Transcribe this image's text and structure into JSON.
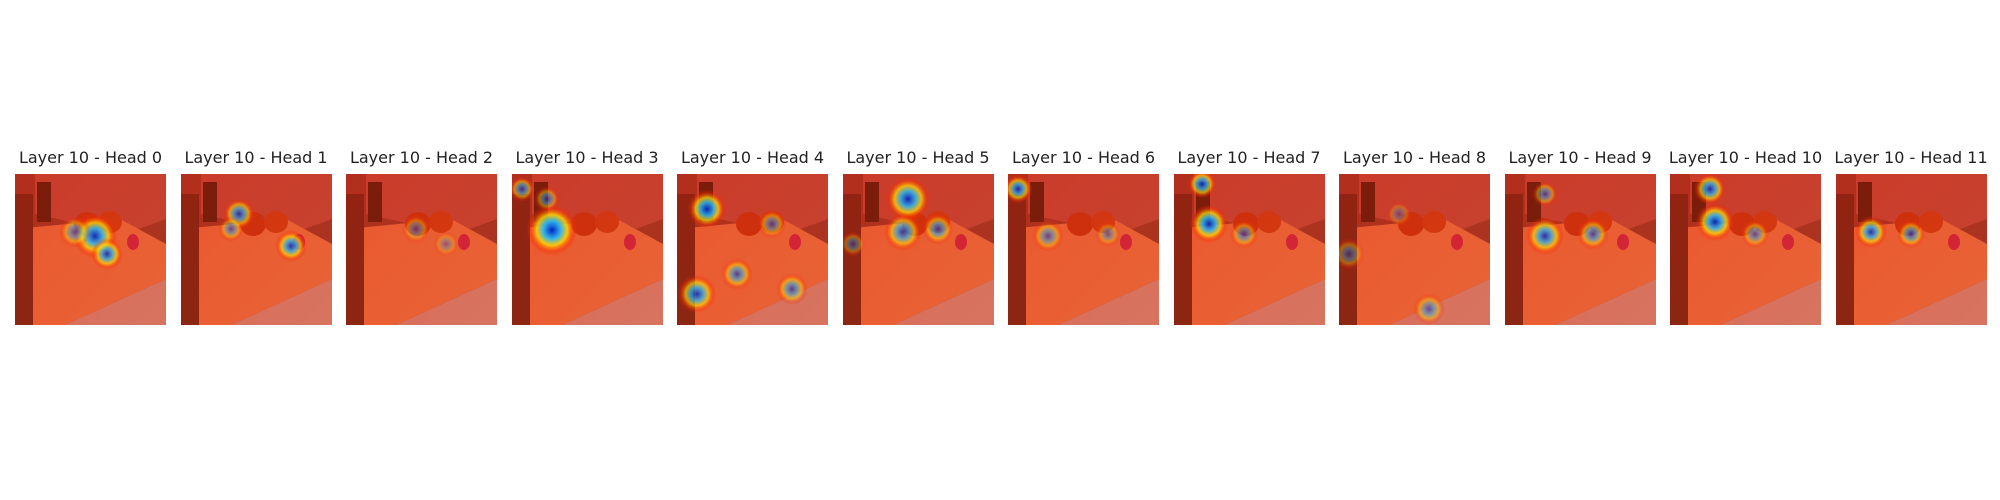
{
  "panels": [
    {
      "title": "Layer 10 - Head 0"
    },
    {
      "title": "Layer 10 - Head 1"
    },
    {
      "title": "Layer 10 - Head 2"
    },
    {
      "title": "Layer 10 - Head 3"
    },
    {
      "title": "Layer 10 - Head 4"
    },
    {
      "title": "Layer 10 - Head 5"
    },
    {
      "title": "Layer 10 - Head 6"
    },
    {
      "title": "Layer 10 - Head 7"
    },
    {
      "title": "Layer 10 - Head 8"
    },
    {
      "title": "Layer 10 - Head 9"
    },
    {
      "title": "Layer 10 - Head 10"
    },
    {
      "title": "Layer 10 - Head 11"
    }
  ],
  "colors": {
    "background": "#ffffff",
    "title_text": "#222222",
    "wall": "#b04040",
    "counter": "#e06a48",
    "heat_low": "#ff2a00",
    "heat_mid": "#ffe000",
    "heat_high": "#0020c0"
  }
}
